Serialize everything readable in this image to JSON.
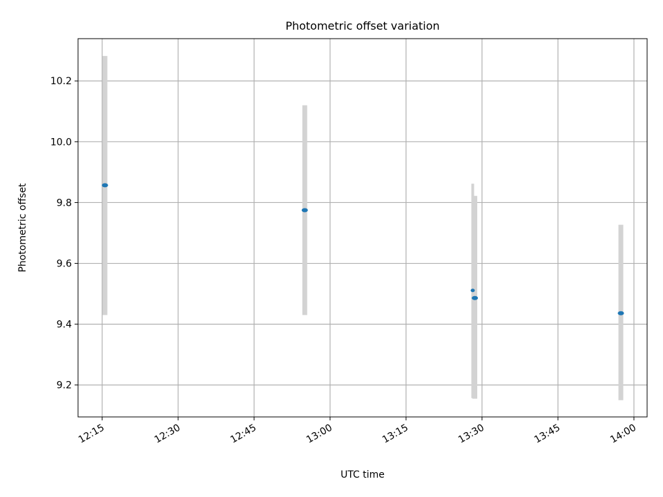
{
  "chart_data": {
    "type": "scatter",
    "title": "Photometric offset variation",
    "xlabel": "UTC time",
    "ylabel": "Photometric offset",
    "xlim": [
      "12:10:14",
      "14:02:36"
    ],
    "ylim": [
      9.095,
      10.339
    ],
    "grid": true,
    "xticks": [
      "12:15",
      "12:30",
      "12:45",
      "13:00",
      "13:15",
      "13:30",
      "13:45",
      "14:00"
    ],
    "yticks": [
      "9.2",
      "9.4",
      "9.6",
      "9.8",
      "10.0",
      "10.2"
    ],
    "series": [
      {
        "name": "offset",
        "color": "#1f77b4",
        "errorbar_color": "#d3d3d3",
        "points": [
          {
            "x": "12:15:33",
            "y": 9.857,
            "ylow": 9.43,
            "yhigh": 10.282,
            "size": "normal"
          },
          {
            "x": "12:55:00",
            "y": 9.775,
            "ylow": 9.43,
            "yhigh": 10.12,
            "size": "normal"
          },
          {
            "x": "13:28:10",
            "y": 9.511,
            "ylow": 9.157,
            "yhigh": 9.862,
            "size": "small"
          },
          {
            "x": "13:28:35",
            "y": 9.486,
            "ylow": 9.155,
            "yhigh": 9.822,
            "size": "normal"
          },
          {
            "x": "13:57:25",
            "y": 9.436,
            "ylow": 9.15,
            "yhigh": 9.727,
            "size": "normal"
          }
        ]
      }
    ]
  }
}
